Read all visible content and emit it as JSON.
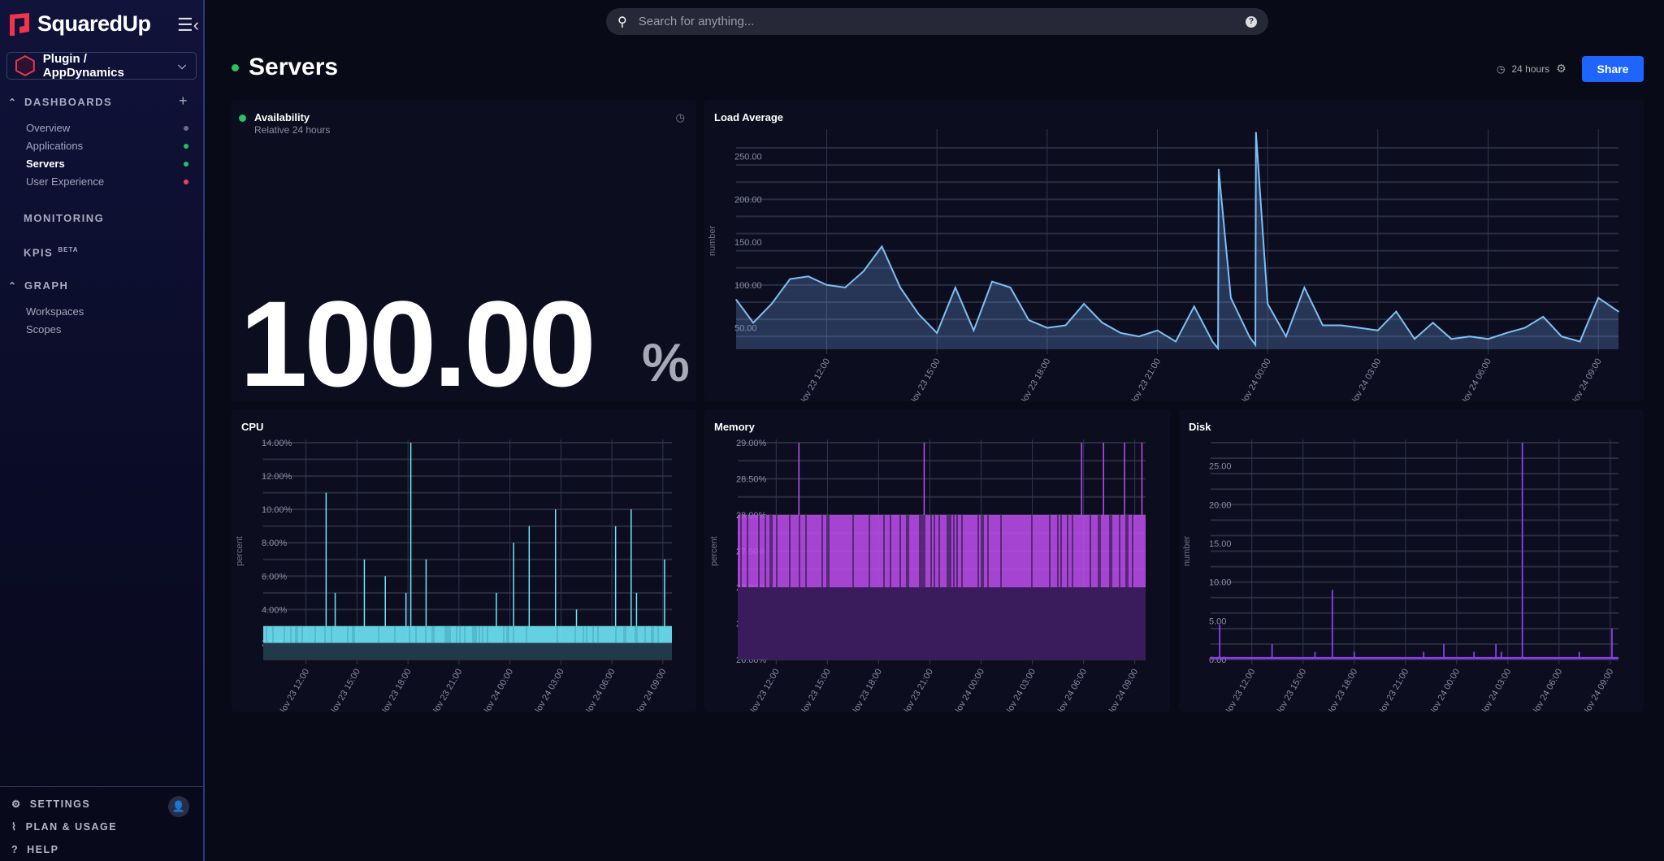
{
  "app": {
    "name": "SquaredUp",
    "logo_icon": "squaredup-logo"
  },
  "sidebar": {
    "workspace": "Plugin / AppDynamics",
    "sections": [
      {
        "label": "DASHBOARDS",
        "items": [
          {
            "label": "Overview",
            "status": "#6b6d80"
          },
          {
            "label": "Applications",
            "status": "#22c55e"
          },
          {
            "label": "Servers",
            "status": "#22c55e",
            "active": true
          },
          {
            "label": "User Experience",
            "status": "#f43f5e"
          }
        ]
      },
      {
        "label": "MONITORING"
      },
      {
        "label": "KPIS",
        "badge": "BETA"
      },
      {
        "label": "GRAPH",
        "items": [
          {
            "label": "Workspaces"
          },
          {
            "label": "Scopes"
          }
        ]
      }
    ],
    "footer": [
      {
        "label": "SETTINGS",
        "icon": "gear-icon"
      },
      {
        "label": "PLAN & USAGE",
        "icon": "chart-icon"
      },
      {
        "label": "HELP",
        "icon": "help-icon"
      }
    ]
  },
  "search": {
    "placeholder": "Search for anything..."
  },
  "header": {
    "title": "Servers",
    "status": "#22c55e",
    "timeframe": "24 hours",
    "share": "Share"
  },
  "availability": {
    "title": "Availability",
    "subtitle": "Relative 24 hours",
    "value": "100.00",
    "unit": "%"
  },
  "colors": {
    "accent": "#1f64ff",
    "load": "#7cc0f5",
    "cpu": "#6ee7f7",
    "memory": "#c04ff0",
    "disk": "#8b3ff0"
  },
  "chart_data": [
    {
      "id": "load",
      "title": "Load Average",
      "type": "area",
      "ylabel": "number",
      "ylim": [
        25,
        278
      ],
      "y_grid_step": 20,
      "yticks": [
        50,
        100,
        150,
        200,
        250
      ],
      "ytick_labels": [
        "50.00",
        "100.00",
        "150.00",
        "200.00",
        "250.00"
      ],
      "xlim": [
        "Nov 23 09:32",
        "Nov 24 09:33"
      ],
      "xticks": [
        "Nov 23 12:00",
        "Nov 23 15:00",
        "Nov 23 18:00",
        "Nov 23 21:00",
        "Nov 24 00:00",
        "Nov 24 03:00",
        "Nov 24 06:00",
        "Nov 24 09:00"
      ],
      "x": [
        "Nov 23 09:32",
        "Nov 23 10:00",
        "Nov 23 10:30",
        "Nov 23 11:00",
        "Nov 23 11:30",
        "Nov 23 12:00",
        "Nov 23 12:30",
        "Nov 23 13:00",
        "Nov 23 13:30",
        "Nov 23 14:00",
        "Nov 23 14:30",
        "Nov 23 15:00",
        "Nov 23 15:30",
        "Nov 23 16:00",
        "Nov 23 16:30",
        "Nov 23 17:00",
        "Nov 23 17:30",
        "Nov 23 18:00",
        "Nov 23 18:30",
        "Nov 23 19:00",
        "Nov 23 19:30",
        "Nov 23 20:00",
        "Nov 23 20:30",
        "Nov 23 21:00",
        "Nov 23 21:30",
        "Nov 23 22:00",
        "Nov 23 22:30",
        "Nov 23 22:39",
        "Nov 23 22:40",
        "Nov 23 23:00",
        "Nov 23 23:30",
        "Nov 23 23:40",
        "Nov 23 23:41",
        "Nov 24 00:00",
        "Nov 24 00:30",
        "Nov 24 01:00",
        "Nov 24 01:30",
        "Nov 24 02:00",
        "Nov 24 02:30",
        "Nov 24 03:00",
        "Nov 24 03:30",
        "Nov 24 04:00",
        "Nov 24 04:30",
        "Nov 24 05:00",
        "Nov 24 05:30",
        "Nov 24 06:00",
        "Nov 24 06:30",
        "Nov 24 07:00",
        "Nov 24 07:30",
        "Nov 24 08:00",
        "Nov 24 08:30",
        "Nov 24 09:00",
        "Nov 24 09:33"
      ],
      "y": [
        83,
        56,
        78,
        107,
        110,
        100,
        97,
        116,
        145,
        97,
        66,
        44,
        97,
        47,
        104,
        97,
        59,
        50,
        53,
        78,
        56,
        44,
        40,
        47,
        34,
        75,
        34,
        26,
        235,
        85,
        40,
        30,
        278,
        78,
        40,
        97,
        53,
        53,
        50,
        47,
        69,
        37,
        56,
        37,
        40,
        37,
        44,
        50,
        63,
        40,
        34,
        85,
        69
      ]
    },
    {
      "id": "cpu",
      "title": "CPU",
      "type": "area",
      "ylabel": "percent",
      "ylim": [
        1,
        14
      ],
      "y_grid_step": 1,
      "yticks": [
        2,
        4,
        6,
        8,
        10,
        12,
        14
      ],
      "ytick_labels": [
        "2.00%",
        "4.00%",
        "6.00%",
        "8.00%",
        "10.00%",
        "12.00%",
        "14.00%"
      ],
      "xlim": [
        "Nov 23 09:29",
        "Nov 24 09:32"
      ],
      "xticks": [
        "Nov 23 12:00",
        "Nov 23 15:00",
        "Nov 23 18:00",
        "Nov 23 21:00",
        "Nov 24 00:00",
        "Nov 24 03:00",
        "Nov 24 06:00",
        "Nov 24 09:00"
      ],
      "band": [
        2,
        3
      ],
      "spikes": [
        [
          "Nov 23 13:11",
          11
        ],
        [
          "Nov 23 13:43",
          5
        ],
        [
          "Nov 23 15:26",
          7
        ],
        [
          "Nov 23 16:40",
          6
        ],
        [
          "Nov 23 17:53",
          5
        ],
        [
          "Nov 23 18:10",
          14
        ],
        [
          "Nov 23 19:04",
          7
        ],
        [
          "Nov 23 23:12",
          5
        ],
        [
          "Nov 24 00:13",
          8
        ],
        [
          "Nov 24 01:08",
          9
        ],
        [
          "Nov 24 02:41",
          10
        ],
        [
          "Nov 24 03:55",
          4
        ],
        [
          "Nov 24 06:13",
          9
        ],
        [
          "Nov 24 07:08",
          10
        ],
        [
          "Nov 24 07:27",
          5
        ],
        [
          "Nov 24 09:06",
          7
        ]
      ]
    },
    {
      "id": "memory",
      "title": "Memory",
      "type": "area",
      "ylabel": "percent",
      "ylim": [
        26,
        29
      ],
      "y_grid_step": 0.25,
      "yticks": [
        26,
        26.5,
        27,
        27.5,
        28,
        28.5,
        29
      ],
      "ytick_labels": [
        "26.00%",
        "26.50%",
        "27.00%",
        "27.50%",
        "28.00%",
        "28.50%",
        "29.00%"
      ],
      "xlim": [
        "Nov 23 09:45",
        "Nov 24 09:38"
      ],
      "xticks": [
        "Nov 23 12:00",
        "Nov 23 15:00",
        "Nov 23 18:00",
        "Nov 23 21:00",
        "Nov 24 00:00",
        "Nov 24 03:00",
        "Nov 24 06:00",
        "Nov 24 09:00"
      ],
      "band": [
        27,
        28
      ],
      "spikes": [
        [
          "Nov 23 13:20",
          29
        ],
        [
          "Nov 23 20:40",
          29
        ],
        [
          "Nov 24 05:53",
          29
        ],
        [
          "Nov 24 07:10",
          29
        ],
        [
          "Nov 24 08:24",
          29
        ],
        [
          "Nov 24 09:25",
          29
        ]
      ]
    },
    {
      "id": "disk",
      "title": "Disk",
      "type": "line",
      "ylabel": "number",
      "ylim": [
        0,
        28
      ],
      "y_grid_step": 2,
      "yticks": [
        0,
        5,
        10,
        15,
        20,
        25
      ],
      "ytick_labels": [
        "0.00",
        "5.00",
        "10.00",
        "15.00",
        "20.00",
        "25.00"
      ],
      "xlim": [
        "Nov 23 09:35",
        "Nov 24 09:29"
      ],
      "xticks": [
        "Nov 23 12:00",
        "Nov 23 15:00",
        "Nov 23 18:00",
        "Nov 23 21:00",
        "Nov 24 00:00",
        "Nov 24 03:00",
        "Nov 24 06:00",
        "Nov 24 09:00"
      ],
      "baseline": 0.2,
      "spikes": [
        [
          "Nov 23 10:07",
          4.5
        ],
        [
          "Nov 23 13:11",
          2
        ],
        [
          "Nov 23 15:42",
          1
        ],
        [
          "Nov 23 16:43",
          9
        ],
        [
          "Nov 23 18:00",
          1
        ],
        [
          "Nov 23 22:04",
          1
        ],
        [
          "Nov 23 23:15",
          2
        ],
        [
          "Nov 24 01:01",
          1
        ],
        [
          "Nov 24 02:18",
          2
        ],
        [
          "Nov 24 02:37",
          1
        ],
        [
          "Nov 24 03:51",
          28
        ],
        [
          "Nov 24 07:11",
          1
        ],
        [
          "Nov 24 09:06",
          4
        ]
      ]
    }
  ]
}
